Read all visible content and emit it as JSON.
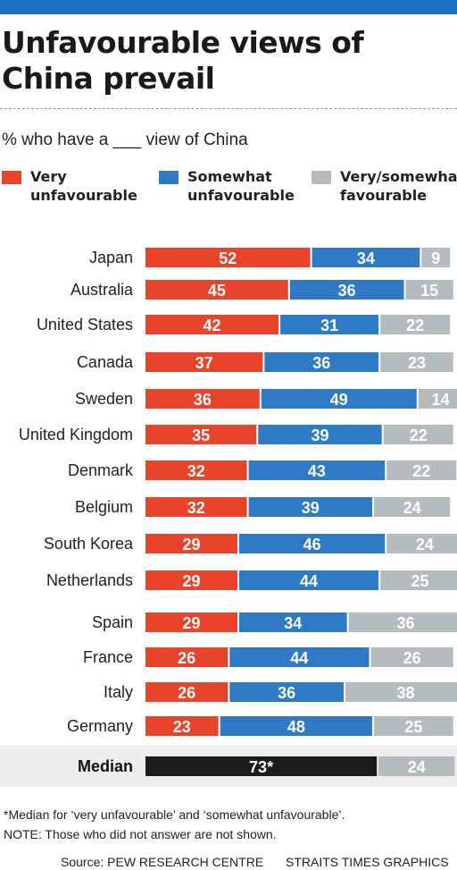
{
  "title": "Unfavourable views of China prevail",
  "subtitle": "% who have a ___ view of China",
  "colors": {
    "very_unfavourable": "#e8442c",
    "somewhat_unfavourable": "#2e7ac5",
    "favourable": "#b5bcc0",
    "median": "#1c1c1c",
    "topbar": "#1f6fc4"
  },
  "legend": [
    {
      "label": "Very\nunfavourable",
      "color": "#e8442c"
    },
    {
      "label": "Somewhat\nunfavourable",
      "color": "#2e7ac5"
    },
    {
      "label": "Very/somewhat\nfavourable",
      "color": "#b5bcc0"
    }
  ],
  "chart_data": {
    "type": "bar",
    "orientation": "horizontal",
    "stacked": true,
    "categories": [
      "Japan",
      "Australia",
      "United States",
      "Canada",
      "Sweden",
      "United Kingdom",
      "Denmark",
      "Belgium",
      "South Korea",
      "Netherlands",
      "Spain",
      "France",
      "Italy",
      "Germany"
    ],
    "series": [
      {
        "name": "Very unfavourable",
        "values": [
          52,
          45,
          42,
          37,
          36,
          35,
          32,
          32,
          29,
          29,
          29,
          26,
          26,
          23
        ]
      },
      {
        "name": "Somewhat unfavourable",
        "values": [
          34,
          36,
          31,
          36,
          49,
          39,
          43,
          39,
          46,
          44,
          34,
          44,
          36,
          48
        ]
      },
      {
        "name": "Very/somewhat favourable",
        "values": [
          9,
          15,
          22,
          23,
          14,
          22,
          22,
          24,
          24,
          25,
          36,
          26,
          38,
          25
        ]
      }
    ],
    "median": {
      "label": "Median",
      "unfavourable": 73,
      "unfavourable_label": "73*",
      "favourable": 24
    },
    "xlim": [
      0,
      100
    ],
    "grid": false
  },
  "footnote": "*Median for ‘very unfavourable’ and ‘somewhat unfavourable’.",
  "note": "NOTE: Those who did not answer are not shown.",
  "source": "Source: PEW RESEARCH CENTRE",
  "credit": "STRAITS TIMES GRAPHICS"
}
